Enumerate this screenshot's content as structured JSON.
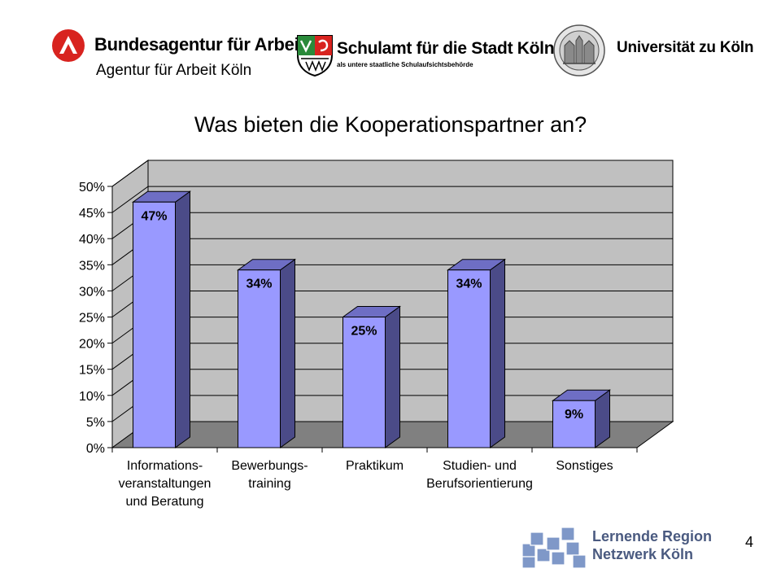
{
  "header": {
    "ba_name": "Bundesagentur für Arbeit",
    "ba_sub": "Agentur für Arbeit Köln",
    "schulamt_name": "Schulamt für die Stadt Köln",
    "schulamt_sub": "als untere staatliche Schulaufsichtsbehörde",
    "uni_name": "Universität zu Köln"
  },
  "footer": {
    "logo_line1": "Lernende Region",
    "logo_line2": "Netzwerk Köln",
    "page_number": "4"
  },
  "colors": {
    "bar_front": "#9999ff",
    "bar_side": "#4b4b88",
    "bar_top": "#6e6ec4",
    "wall": "#c0c0c0",
    "floor": "#808080",
    "ba_red": "#d8231f",
    "logo_blue": "#7f98c8"
  },
  "chart_data": {
    "type": "bar",
    "title": "Was bieten die Kooperationspartner an?",
    "categories": [
      [
        "Informations-",
        "veranstaltungen",
        "und Beratung"
      ],
      [
        "Bewerbungs-",
        "training"
      ],
      [
        "Praktikum"
      ],
      [
        "Studien- und",
        "Berufsorientierung"
      ],
      [
        "Sonstiges"
      ]
    ],
    "values": [
      47,
      34,
      25,
      34,
      9
    ],
    "data_labels": [
      "47%",
      "34%",
      "25%",
      "34%",
      "9%"
    ],
    "yticks": [
      "0%",
      "5%",
      "10%",
      "15%",
      "20%",
      "25%",
      "30%",
      "35%",
      "40%",
      "45%",
      "50%"
    ],
    "ylim": [
      0,
      50
    ],
    "grid": true,
    "three_d": true
  }
}
